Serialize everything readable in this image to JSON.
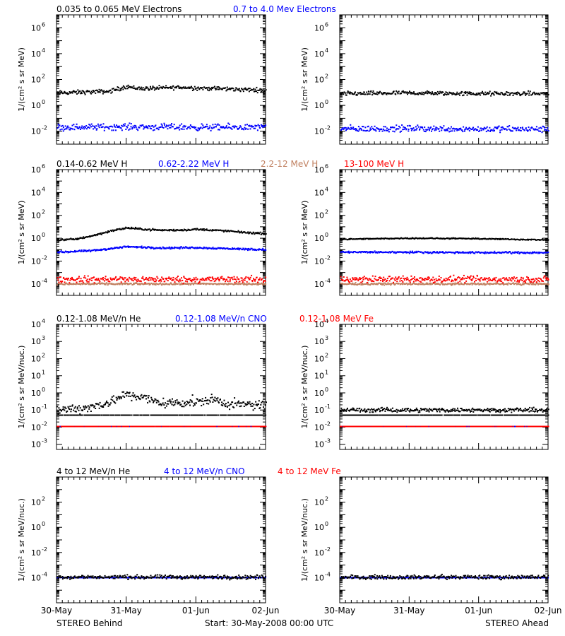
{
  "chart_data": [
    {
      "type": "scatter",
      "panel": "row1-left",
      "y_scale": "log",
      "ylim": [
        0.001,
        10000000
      ],
      "ylabel": "1/(cm² s sr MeV)",
      "yticks": [
        {
          "v": 0.01,
          "e": "-2"
        },
        {
          "v": 1,
          "e": "0"
        },
        {
          "v": 100,
          "e": "2"
        },
        {
          "v": 10000,
          "e": "4"
        },
        {
          "v": 1000000,
          "e": "6"
        }
      ],
      "title_segments": [
        {
          "text": "0.035 to 0.065 MeV Electrons",
          "color": "#000000"
        },
        {
          "text": "0.7 to 4.0 Mev Electrons",
          "color": "#0000ff"
        }
      ],
      "series": [
        {
          "color": "#000000",
          "points": [
            [
              0.0,
              9
            ],
            [
              0.25,
              10
            ],
            [
              0.5,
              11
            ],
            [
              0.75,
              12
            ],
            [
              0.9,
              20
            ],
            [
              1.0,
              30
            ],
            [
              1.1,
              22
            ],
            [
              1.25,
              20
            ],
            [
              1.5,
              22
            ],
            [
              1.75,
              25
            ],
            [
              2.0,
              22
            ],
            [
              2.25,
              20
            ],
            [
              2.5,
              18
            ],
            [
              2.75,
              16
            ],
            [
              3.0,
              15
            ]
          ],
          "scatter": 0.2
        },
        {
          "color": "#0000ff",
          "points": [
            [
              0.0,
              0.02
            ],
            [
              1.0,
              0.022
            ],
            [
              2.0,
              0.02
            ],
            [
              3.0,
              0.02
            ]
          ],
          "scatter": 0.3
        }
      ]
    },
    {
      "type": "scatter",
      "panel": "row1-right",
      "y_scale": "log",
      "ylim": [
        0.001,
        10000000
      ],
      "ylabel": "1/(cm² s sr MeV)",
      "yticks": [
        {
          "v": 0.01,
          "e": "-2"
        },
        {
          "v": 1,
          "e": "0"
        },
        {
          "v": 100,
          "e": "2"
        },
        {
          "v": 10000,
          "e": "4"
        },
        {
          "v": 1000000,
          "e": "6"
        }
      ],
      "title_segments": [],
      "series": [
        {
          "color": "#000000",
          "points": [
            [
              0.0,
              8
            ],
            [
              1.0,
              9
            ],
            [
              2.0,
              8
            ],
            [
              3.0,
              8
            ]
          ],
          "scatter": 0.2
        },
        {
          "color": "#0000ff",
          "points": [
            [
              0.0,
              0.015
            ],
            [
              1.0,
              0.016
            ],
            [
              2.0,
              0.015
            ],
            [
              3.0,
              0.014
            ]
          ],
          "scatter": 0.3
        }
      ]
    },
    {
      "type": "scatter",
      "panel": "row2-left",
      "y_scale": "log",
      "ylim": [
        1e-05,
        1000000
      ],
      "ylabel": "1/(cm² s sr MeV)",
      "yticks": [
        {
          "v": 0.0001,
          "e": "-4"
        },
        {
          "v": 0.01,
          "e": "-2"
        },
        {
          "v": 1,
          "e": "0"
        },
        {
          "v": 100,
          "e": "2"
        },
        {
          "v": 10000,
          "e": "4"
        },
        {
          "v": 1000000,
          "e": "6"
        }
      ],
      "title_segments": [
        {
          "text": "0.14-0.62 MeV H",
          "color": "#000000"
        },
        {
          "text": "0.62-2.22 MeV H",
          "color": "#0000ff"
        },
        {
          "text": "2.2-12 MeV H",
          "color": "#c08060"
        },
        {
          "text": "13-100 MeV H",
          "color": "#ff0000"
        }
      ],
      "series": [
        {
          "color": "#000000",
          "points": [
            [
              0.0,
              0.7
            ],
            [
              0.25,
              0.8
            ],
            [
              0.5,
              1.6
            ],
            [
              0.75,
              4
            ],
            [
              1.0,
              8
            ],
            [
              1.25,
              6
            ],
            [
              1.5,
              5
            ],
            [
              1.75,
              5
            ],
            [
              2.0,
              6
            ],
            [
              2.25,
              5
            ],
            [
              2.5,
              4
            ],
            [
              2.75,
              3
            ],
            [
              3.0,
              2.5
            ]
          ],
          "scatter": 0.1
        },
        {
          "color": "#0000ff",
          "points": [
            [
              0.0,
              0.06
            ],
            [
              0.5,
              0.08
            ],
            [
              1.0,
              0.18
            ],
            [
              1.5,
              0.14
            ],
            [
              2.0,
              0.15
            ],
            [
              2.5,
              0.12
            ],
            [
              3.0,
              0.1
            ]
          ],
          "scatter": 0.1
        },
        {
          "color": "#c08060",
          "points": [
            [
              0.0,
              0.0001
            ],
            [
              1.0,
              0.0001
            ],
            [
              2.0,
              0.0001
            ],
            [
              3.0,
              0.0001
            ]
          ],
          "scatter": 0.1
        },
        {
          "color": "#ff0000",
          "points": [
            [
              0.0,
              0.00025
            ],
            [
              1.0,
              0.00025
            ],
            [
              2.0,
              0.00025
            ],
            [
              3.0,
              0.00025
            ]
          ],
          "scatter": 0.35
        }
      ]
    },
    {
      "type": "scatter",
      "panel": "row2-right",
      "y_scale": "log",
      "ylim": [
        1e-05,
        1000000
      ],
      "ylabel": "1/(cm² s sr MeV)",
      "yticks": [
        {
          "v": 0.0001,
          "e": "-4"
        },
        {
          "v": 0.01,
          "e": "-2"
        },
        {
          "v": 1,
          "e": "0"
        },
        {
          "v": 100,
          "e": "2"
        },
        {
          "v": 10000,
          "e": "4"
        },
        {
          "v": 1000000,
          "e": "6"
        }
      ],
      "title_segments": [],
      "series": [
        {
          "color": "#000000",
          "points": [
            [
              0.0,
              0.8
            ],
            [
              1.0,
              1.0
            ],
            [
              2.0,
              0.9
            ],
            [
              3.0,
              0.7
            ]
          ],
          "scatter": 0.06
        },
        {
          "color": "#0000ff",
          "points": [
            [
              0.0,
              0.06
            ],
            [
              1.0,
              0.06
            ],
            [
              2.0,
              0.055
            ],
            [
              3.0,
              0.055
            ]
          ],
          "scatter": 0.1
        },
        {
          "color": "#c08060",
          "points": [
            [
              0.0,
              0.0001
            ],
            [
              1.0,
              0.0001
            ],
            [
              2.0,
              0.0001
            ],
            [
              3.0,
              0.0001
            ]
          ],
          "scatter": 0.1
        },
        {
          "color": "#ff0000",
          "points": [
            [
              0.0,
              0.00025
            ],
            [
              1.0,
              0.00025
            ],
            [
              2.0,
              0.00025
            ],
            [
              3.0,
              0.00025
            ]
          ],
          "scatter": 0.35
        }
      ]
    },
    {
      "type": "scatter",
      "panel": "row3-left",
      "y_scale": "log",
      "ylim": [
        0.0005,
        10000
      ],
      "ylabel": "1/(cm² s sr MeV/nuc.)",
      "yticks": [
        {
          "v": 0.001,
          "e": "-3"
        },
        {
          "v": 0.01,
          "e": "-2"
        },
        {
          "v": 0.1,
          "e": "-1"
        },
        {
          "v": 1,
          "e": "0"
        },
        {
          "v": 10,
          "e": "1"
        },
        {
          "v": 100,
          "e": "2"
        },
        {
          "v": 1000,
          "e": "3"
        },
        {
          "v": 10000,
          "e": "4"
        }
      ],
      "title_segments": [
        {
          "text": "0.12-1.08 MeV/n He",
          "color": "#000000"
        },
        {
          "text": "0.12-1.08 MeV/n CNO",
          "color": "#0000ff"
        },
        {
          "text": "0.12-1.08 MeV Fe",
          "color": "#ff0000"
        }
      ],
      "series": [
        {
          "color": "#000000",
          "points": [
            [
              0.0,
              0.1
            ],
            [
              0.5,
              0.15
            ],
            [
              0.75,
              0.3
            ],
            [
              1.0,
              0.8
            ],
            [
              1.25,
              0.5
            ],
            [
              1.5,
              0.25
            ],
            [
              2.0,
              0.3
            ],
            [
              2.25,
              0.4
            ],
            [
              2.5,
              0.2
            ],
            [
              3.0,
              0.2
            ]
          ],
          "scatter": 0.35
        },
        {
          "color": "#000000",
          "points": [
            [
              0.0,
              0.05
            ],
            [
              3.0,
              0.05
            ]
          ],
          "scatter": 0.0
        },
        {
          "color": "#0000ff",
          "points": [
            [
              0.0,
              0.011
            ],
            [
              3.0,
              0.011
            ]
          ],
          "scatter": 0.0
        },
        {
          "color": "#ff0000",
          "points": [
            [
              0.0,
              0.011
            ],
            [
              3.0,
              0.011
            ]
          ],
          "scatter": 0.0
        }
      ]
    },
    {
      "type": "scatter",
      "panel": "row3-right",
      "y_scale": "log",
      "ylim": [
        0.0005,
        10000
      ],
      "ylabel": "1/(cm² s sr MeV/nuc.)",
      "yticks": [
        {
          "v": 0.001,
          "e": "-3"
        },
        {
          "v": 0.01,
          "e": "-2"
        },
        {
          "v": 0.1,
          "e": "-1"
        },
        {
          "v": 1,
          "e": "0"
        },
        {
          "v": 10,
          "e": "1"
        },
        {
          "v": 100,
          "e": "2"
        },
        {
          "v": 1000,
          "e": "3"
        },
        {
          "v": 10000,
          "e": "4"
        }
      ],
      "title_segments": [],
      "series": [
        {
          "color": "#000000",
          "points": [
            [
              0.0,
              0.1
            ],
            [
              3.0,
              0.1
            ]
          ],
          "scatter": 0.15
        },
        {
          "color": "#000000",
          "points": [
            [
              0.0,
              0.05
            ],
            [
              3.0,
              0.05
            ]
          ],
          "scatter": 0.0
        },
        {
          "color": "#0000ff",
          "points": [
            [
              0.0,
              0.011
            ],
            [
              3.0,
              0.011
            ]
          ],
          "scatter": 0.0
        },
        {
          "color": "#ff0000",
          "points": [
            [
              0.0,
              0.011
            ],
            [
              3.0,
              0.011
            ]
          ],
          "scatter": 0.0
        }
      ]
    },
    {
      "type": "scatter",
      "panel": "row4-left",
      "y_scale": "log",
      "ylim": [
        1e-06,
        10000
      ],
      "ylabel": "1/(cm² s sr MeV/nuc.)",
      "yticks": [
        {
          "v": 0.0001,
          "e": "-4"
        },
        {
          "v": 0.01,
          "e": "-2"
        },
        {
          "v": 1,
          "e": "0"
        },
        {
          "v": 100,
          "e": "2"
        }
      ],
      "title_segments": [
        {
          "text": "4 to 12 MeV/n He",
          "color": "#000000"
        },
        {
          "text": "4 to 12 MeV/n CNO",
          "color": "#0000ff"
        },
        {
          "text": "4 to 12 MeV Fe",
          "color": "#ff0000"
        }
      ],
      "series": [
        {
          "color": "#0000ff",
          "points": [
            [
              0.0,
              0.0001
            ],
            [
              3.0,
              0.0001
            ]
          ],
          "scatter": 0.0
        },
        {
          "color": "#000000",
          "points": [
            [
              0.0,
              0.00011
            ],
            [
              3.0,
              0.00011
            ]
          ],
          "scatter": 0.2
        }
      ]
    },
    {
      "type": "scatter",
      "panel": "row4-right",
      "y_scale": "log",
      "ylim": [
        1e-06,
        10000
      ],
      "ylabel": "1/(cm² s sr MeV/nuc.)",
      "yticks": [
        {
          "v": 0.0001,
          "e": "-4"
        },
        {
          "v": 0.01,
          "e": "-2"
        },
        {
          "v": 1,
          "e": "0"
        },
        {
          "v": 100,
          "e": "2"
        }
      ],
      "title_segments": [],
      "series": [
        {
          "color": "#0000ff",
          "points": [
            [
              0.0,
              0.0001
            ],
            [
              3.0,
              0.0001
            ]
          ],
          "scatter": 0.0
        },
        {
          "color": "#000000",
          "points": [
            [
              0.0,
              0.00011
            ],
            [
              3.0,
              0.00011
            ]
          ],
          "scatter": 0.2
        }
      ]
    }
  ],
  "x_axis": {
    "range_days": [
      0,
      3
    ],
    "tick_labels": [
      "30-May",
      "31-May",
      "01-Jun",
      "02-Jun"
    ]
  },
  "footer": {
    "left": "STEREO Behind",
    "center": "Start: 30-May-2008 00:00 UTC",
    "right": "STEREO Ahead"
  }
}
